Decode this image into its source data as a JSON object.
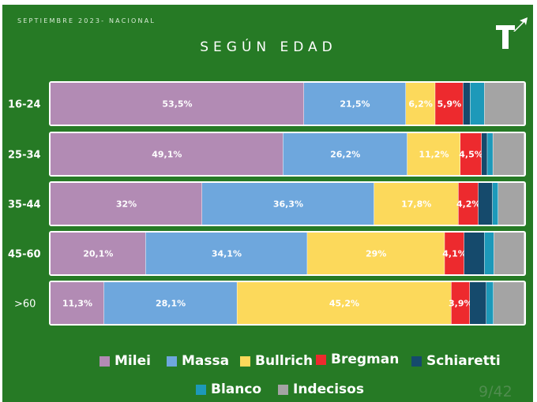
{
  "header": {
    "date": "SEPTIEMBRE 2023- NACIONAL",
    "page": "9/42"
  },
  "colors": {
    "background": "#267a25",
    "Milei": "#b28bb4",
    "Massa": "#6ea7dd",
    "Bullrich": "#fcd95b",
    "Bregman": "#ed2a2e",
    "Schiaretti": "#154a6c",
    "Blanco": "#1d99b9",
    "Indecisos": "#a4a4a4"
  },
  "chart_data": {
    "type": "bar",
    "orientation": "horizontal",
    "stacked": true,
    "title": "SEGÚN EDAD",
    "categories": [
      "16-24",
      "25-34",
      "35-44",
      "45-60",
      ">60"
    ],
    "series": [
      {
        "name": "Milei",
        "values": [
          53.5,
          49.1,
          32,
          20.1,
          11.3
        ],
        "labels": [
          "53,5%",
          "49,1%",
          "32%",
          "20,1%",
          "11,3%"
        ]
      },
      {
        "name": "Massa",
        "values": [
          21.5,
          26.2,
          36.3,
          34.1,
          28.1
        ],
        "labels": [
          "21,5%",
          "26,2%",
          "36,3%",
          "34,1%",
          "28,1%"
        ]
      },
      {
        "name": "Bullrich",
        "values": [
          6.2,
          11.2,
          17.8,
          29,
          45.2
        ],
        "labels": [
          "6,2%",
          "11,2%",
          "17,8%",
          "29%",
          "45,2%"
        ]
      },
      {
        "name": "Bregman",
        "values": [
          5.9,
          4.5,
          4.2,
          4.1,
          3.9
        ],
        "labels": [
          "5,9%",
          "4,5%",
          "4,2%",
          "4,1%",
          "3,9%"
        ]
      },
      {
        "name": "Schiaretti",
        "values": [
          1.5,
          1.2,
          3,
          4.3,
          3.5
        ],
        "labels": [
          "",
          "",
          "",
          "",
          ""
        ]
      },
      {
        "name": "Blanco",
        "values": [
          3,
          1.2,
          1.2,
          2,
          1.5
        ],
        "labels": [
          "",
          "",
          "",
          "",
          ""
        ]
      },
      {
        "name": "Indecisos",
        "values": [
          8.4,
          6.6,
          5.5,
          6.4,
          6.5
        ],
        "labels": [
          "",
          "",
          "",
          "",
          ""
        ]
      }
    ],
    "xlim": [
      0,
      100
    ],
    "grid": false,
    "legend_position": "bottom",
    "legend": [
      "Milei",
      "Massa",
      "Bullrich",
      "Bregman",
      "Schiaretti",
      "Blanco",
      "Indecisos"
    ]
  }
}
